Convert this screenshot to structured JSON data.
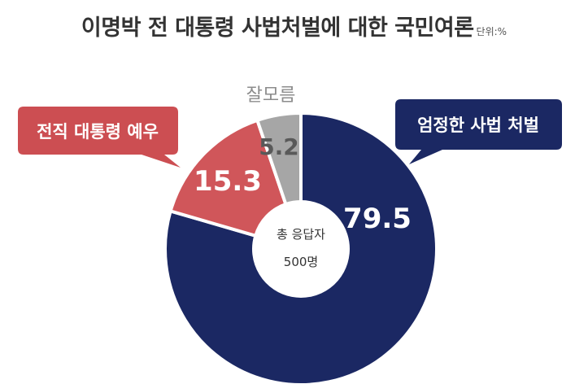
{
  "title": "이명박 전 대통령 사법처벌에 대한 국민여론",
  "unit": "단위:%",
  "center_label": {
    "line1": "총 응답자",
    "line2": "500명"
  },
  "colors": {
    "navy": "#1b2863",
    "red": "#d0565a",
    "gray": "#a6a6a6",
    "callout_navy": "#1b2863",
    "callout_red": "#cc4e52"
  },
  "chart_data": {
    "type": "pie",
    "subtype": "donut",
    "title": "이명박 전 대통령 사법처벌에 대한 국민여론",
    "unit": "%",
    "categories": [
      "엄정한 사법 처벌",
      "전직 대통령 예우",
      "잘모름"
    ],
    "values": [
      79.5,
      15.3,
      5.2
    ],
    "value_labels": [
      "79.5",
      "15.3",
      "5.2"
    ],
    "colors": [
      "#1b2863",
      "#d0565a",
      "#a6a6a6"
    ],
    "legend": "callouts"
  }
}
